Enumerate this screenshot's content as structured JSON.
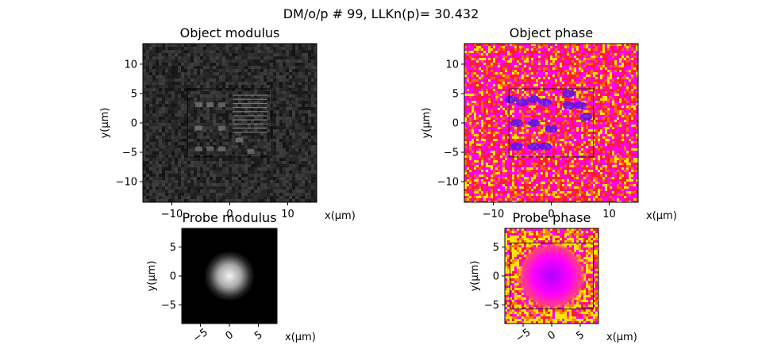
{
  "suptitle": "DM/o/p # 99, LLKn(p)=  30.432",
  "chart_data": [
    {
      "type": "heatmap",
      "title": "Object modulus",
      "colormap": "gray",
      "xlabel": "x(µm)",
      "ylabel": "y(µm)",
      "xlim": [
        -15,
        15
      ],
      "ylim": [
        -13.5,
        13.5
      ],
      "xticks": [
        -10,
        0,
        10
      ],
      "yticks": [
        10,
        5,
        0,
        -5,
        -10
      ],
      "xticklabels": [
        "−10",
        "0",
        "10"
      ],
      "yticklabels": [
        "10",
        "5",
        "0",
        "−5",
        "−10"
      ],
      "roi_rectangle": {
        "x": [
          -7.3,
          7.3
        ],
        "y": [
          -5.8,
          5.8
        ]
      }
    },
    {
      "type": "heatmap",
      "title": "Object phase",
      "colormap": "gnuplot2-like (magenta / red / yellow)",
      "xlabel": "x(µm)",
      "ylabel": "y(µm)",
      "xlim": [
        -15,
        15
      ],
      "ylim": [
        -13.5,
        13.5
      ],
      "xticks": [
        -10,
        0,
        10
      ],
      "yticks": [
        10,
        5,
        0,
        -5,
        -10
      ],
      "xticklabels": [
        "−10",
        "0",
        "10"
      ],
      "yticklabels": [
        "10",
        "5",
        "0",
        "−5",
        "−10"
      ],
      "roi_rectangle": {
        "x": [
          -7.3,
          7.3
        ],
        "y": [
          -5.8,
          5.8
        ]
      }
    },
    {
      "type": "heatmap",
      "title": "Probe modulus",
      "colormap": "gray",
      "xlabel": "x(µm)",
      "ylabel": "y(µm)",
      "xlim": [
        -8.2,
        8.2
      ],
      "ylim": [
        -8.2,
        8.2
      ],
      "xticks": [
        -5,
        0,
        5
      ],
      "yticks": [
        5,
        0,
        -5
      ],
      "xticklabels": [
        "−5",
        "0",
        "5"
      ],
      "yticklabels": [
        "5",
        "0",
        "−5"
      ],
      "beam_center": [
        0,
        0
      ],
      "beam_radius_um": 3.5
    },
    {
      "type": "heatmap",
      "title": "Probe phase",
      "colormap": "gnuplot2-like (magenta / red / yellow)",
      "xlabel": "x(µm)",
      "ylabel": "y(µm)",
      "xlim": [
        -8.2,
        8.2
      ],
      "ylim": [
        -8.2,
        8.2
      ],
      "xticks": [
        -5,
        0,
        5
      ],
      "yticks": [
        5,
        0,
        -5
      ],
      "xticklabels": [
        "−5",
        "0",
        "5"
      ],
      "yticklabels": [
        "5",
        "0",
        "−5"
      ],
      "roi_rectangle": {
        "x": [
          -7.3,
          7.3
        ],
        "y": [
          -5.7,
          5.7
        ]
      }
    }
  ],
  "colors": {
    "frame": "#000000",
    "magenta": "#ff00ff",
    "red": "#ff1a3c",
    "yellow": "#ffe600",
    "blue": "#5010ff"
  }
}
